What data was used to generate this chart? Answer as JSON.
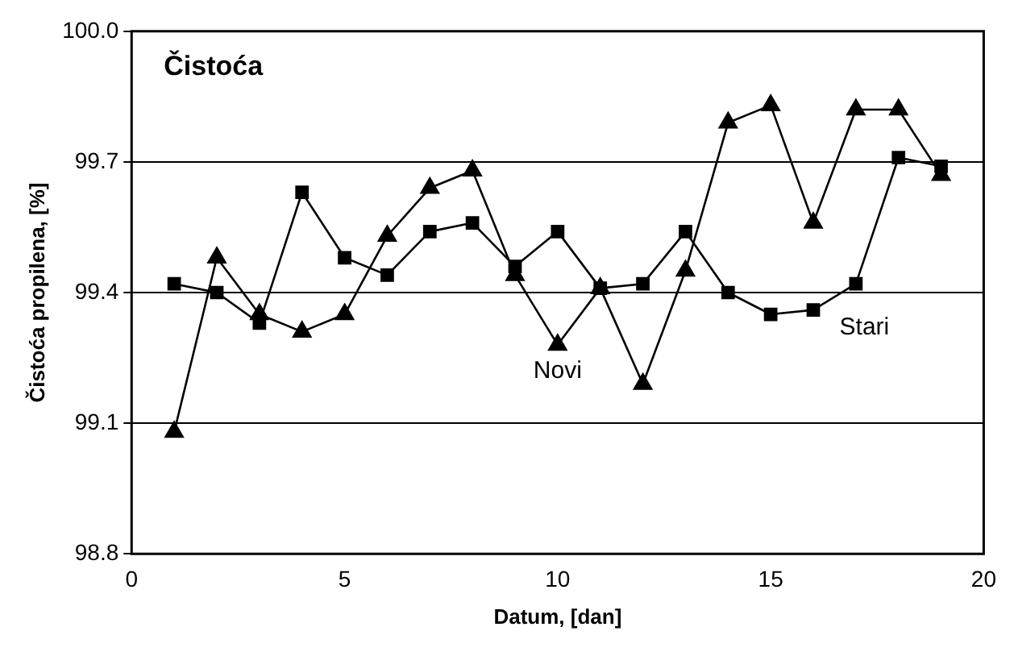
{
  "chart_data": {
    "type": "line",
    "title": "Čistoća",
    "xlabel": "Datum, [dan]",
    "ylabel": "Čistoća propilena, [%]",
    "x": [
      1,
      2,
      3,
      4,
      5,
      6,
      7,
      8,
      9,
      10,
      11,
      12,
      13,
      14,
      15,
      16,
      17,
      18,
      19
    ],
    "series": [
      {
        "name": "Stari",
        "color": "#000000",
        "marker": "square",
        "values": [
          99.42,
          99.4,
          99.33,
          99.63,
          99.48,
          99.44,
          99.54,
          99.56,
          99.46,
          99.54,
          99.41,
          99.42,
          99.54,
          99.4,
          99.35,
          99.36,
          99.42,
          99.71,
          99.69
        ]
      },
      {
        "name": "Novi",
        "color": "#000000",
        "marker": "triangle",
        "values": [
          99.08,
          99.48,
          99.35,
          99.31,
          99.35,
          99.53,
          99.64,
          99.68,
          99.44,
          99.28,
          99.41,
          99.19,
          99.45,
          99.79,
          99.83,
          99.56,
          99.82,
          99.82,
          99.67
        ]
      }
    ],
    "xlim": [
      0,
      20
    ],
    "xticks": [
      0,
      5,
      10,
      15,
      20
    ],
    "ylim": [
      98.8,
      100
    ],
    "yticks": [
      98.8,
      99.1,
      99.4,
      99.7,
      {
        "value": 100,
        "label": "100.0"
      }
    ],
    "grid": "y",
    "legend": false,
    "line_style": "solid"
  }
}
